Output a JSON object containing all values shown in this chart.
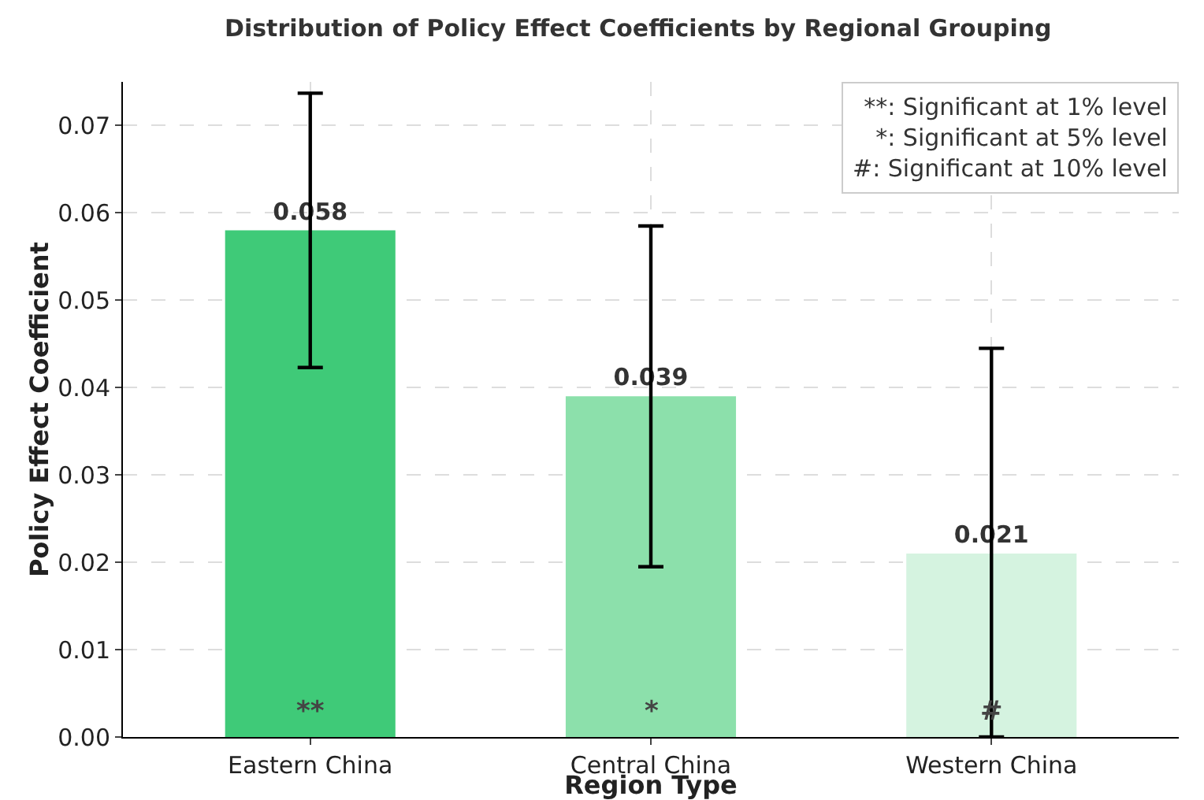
{
  "chart_data": {
    "type": "bar",
    "title": "Distribution of Policy Effect Coefficients by Regional Grouping",
    "xlabel": "Region Type",
    "ylabel": "Policy Effect Coefficient",
    "categories": [
      "Eastern China",
      "Central China",
      "Western China"
    ],
    "values": [
      0.058,
      0.039,
      0.021
    ],
    "colors": [
      "#3fca78",
      "#8ce0ab",
      "#d5f3e0"
    ],
    "errors": [
      0.0157,
      0.0195,
      [
        0,
        0.0445
      ]
    ],
    "data_labels": true,
    "ylim": [
      0,
      0.075
    ],
    "yticks": [
      {
        "value": 0,
        "label": "0.00"
      },
      {
        "value": 0.01,
        "label": "0.01"
      },
      {
        "value": 0.02,
        "label": "0.02"
      },
      {
        "value": 0.03,
        "label": "0.03"
      },
      {
        "value": 0.04,
        "label": "0.04"
      },
      {
        "value": 0.05,
        "label": "0.05"
      },
      {
        "value": 0.06,
        "label": "0.06"
      },
      {
        "value": 0.07,
        "label": "0.07"
      }
    ],
    "grid": true,
    "annotations": [
      "**: Significant at 1% level",
      "*: Significant at 5% level",
      "#: Significant at 10% level",
      "**",
      "*",
      "#"
    ]
  }
}
